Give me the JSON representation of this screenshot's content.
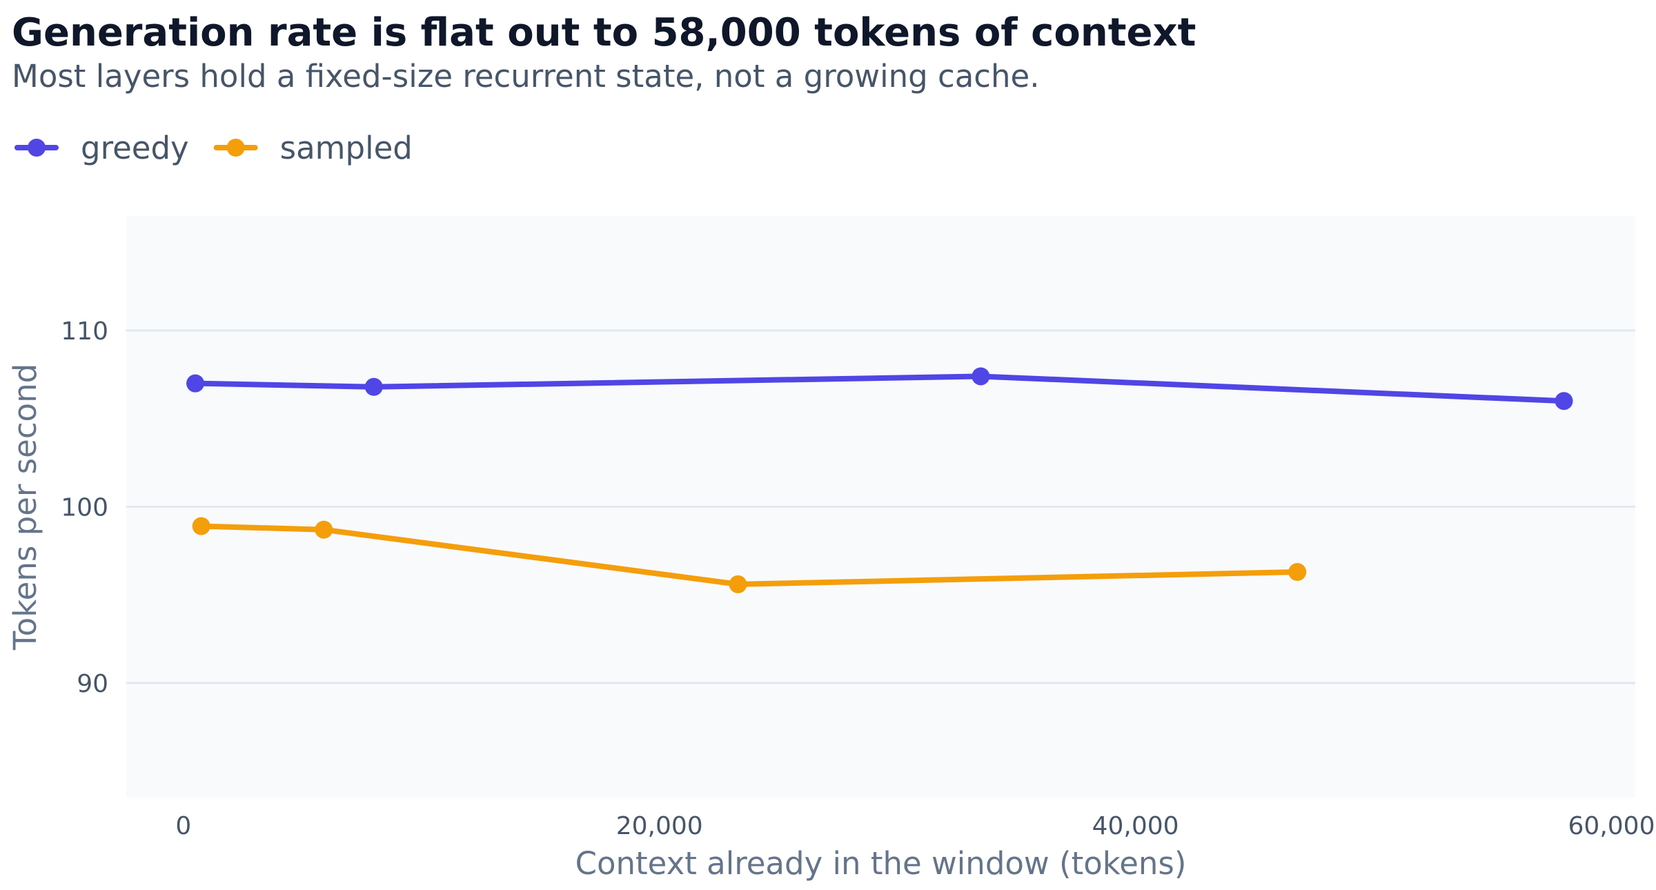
{
  "chart_data": {
    "type": "line",
    "title": "Generation rate is flat out to 58,000 tokens of context",
    "subtitle": "Most layers hold a fixed-size recurrent state, not a growing cache.",
    "xlabel": "Context already in the window (tokens)",
    "ylabel": "Tokens per second",
    "xlim": [
      -2400,
      61000
    ],
    "ylim": [
      83.5,
      116.5
    ],
    "xticks": [
      0,
      20000,
      40000,
      60000
    ],
    "xtick_labels": [
      "0",
      "20,000",
      "40,000",
      "60,000"
    ],
    "yticks": [
      90,
      100,
      110
    ],
    "ytick_labels": [
      "90",
      "100",
      "110"
    ],
    "grid": "horizontal",
    "legend_position": "top-left",
    "plot_background": "#f8fafc",
    "gridline_color": "#e2e8f0",
    "series": [
      {
        "name": "greedy",
        "color": "#4f46e5",
        "x": [
          500,
          8000,
          33500,
          58000
        ],
        "y": [
          107.0,
          106.8,
          107.4,
          106.0
        ]
      },
      {
        "name": "sampled",
        "color": "#f59e0b",
        "x": [
          750,
          5900,
          23300,
          46800
        ],
        "y": [
          98.9,
          98.7,
          95.6,
          96.3
        ]
      }
    ]
  }
}
